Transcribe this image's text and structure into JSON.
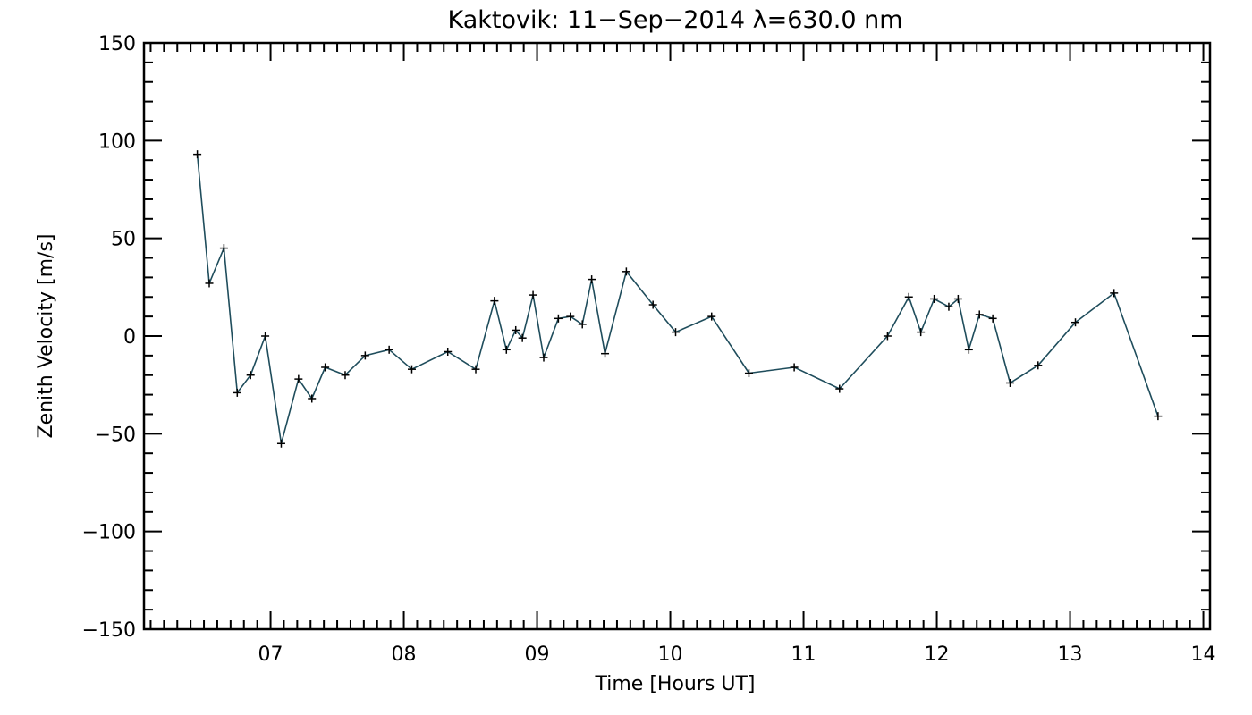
{
  "chart_data": {
    "type": "line",
    "title": "Kaktovik: 11−Sep−2014 λ=630.0 nm",
    "xlabel": "Time [Hours UT]",
    "ylabel": "Zenith Velocity [m/s]",
    "xlim": [
      6.05,
      14.05
    ],
    "ylim": [
      -150,
      150
    ],
    "xticks": [
      7,
      8,
      9,
      10,
      11,
      12,
      13,
      14
    ],
    "xtick_labels": [
      "07",
      "08",
      "09",
      "10",
      "11",
      "12",
      "13",
      "14"
    ],
    "yticks": [
      -150,
      -100,
      -50,
      0,
      50,
      100,
      150
    ],
    "ytick_labels": [
      "−150",
      "−100",
      "−50",
      "0",
      "50",
      "100",
      "150"
    ],
    "grid": false,
    "marker": "plus",
    "line_color": "#1f4d5c",
    "marker_color": "#000000",
    "series": [
      {
        "x": [
          6.45,
          6.54,
          6.65,
          6.75,
          6.85,
          6.96,
          7.08,
          7.21,
          7.31,
          7.41,
          7.56,
          7.71,
          7.89,
          8.06,
          8.33,
          8.54,
          8.68,
          8.77,
          8.84,
          8.89,
          8.97,
          9.05,
          9.16,
          9.25,
          9.34,
          9.41,
          9.51,
          9.67,
          9.87,
          10.04,
          10.31,
          10.59,
          10.93,
          11.27,
          11.63,
          11.79,
          11.88,
          11.98,
          12.09,
          12.16,
          12.24,
          12.32,
          12.42,
          12.55,
          12.76,
          13.04,
          13.33,
          13.66
        ],
        "y": [
          93,
          27,
          45,
          -29,
          -20,
          0,
          -55,
          -22,
          -32,
          -16,
          -20,
          -10,
          -7,
          -17,
          -8,
          -17,
          18,
          -7,
          3,
          -1,
          21,
          -11,
          9,
          10,
          6,
          29,
          -9,
          33,
          16,
          2,
          10,
          -19,
          -16,
          -27,
          0,
          20,
          2,
          19,
          15,
          19,
          -7,
          11,
          9,
          -24,
          -15,
          7,
          22,
          -41
        ]
      }
    ]
  }
}
